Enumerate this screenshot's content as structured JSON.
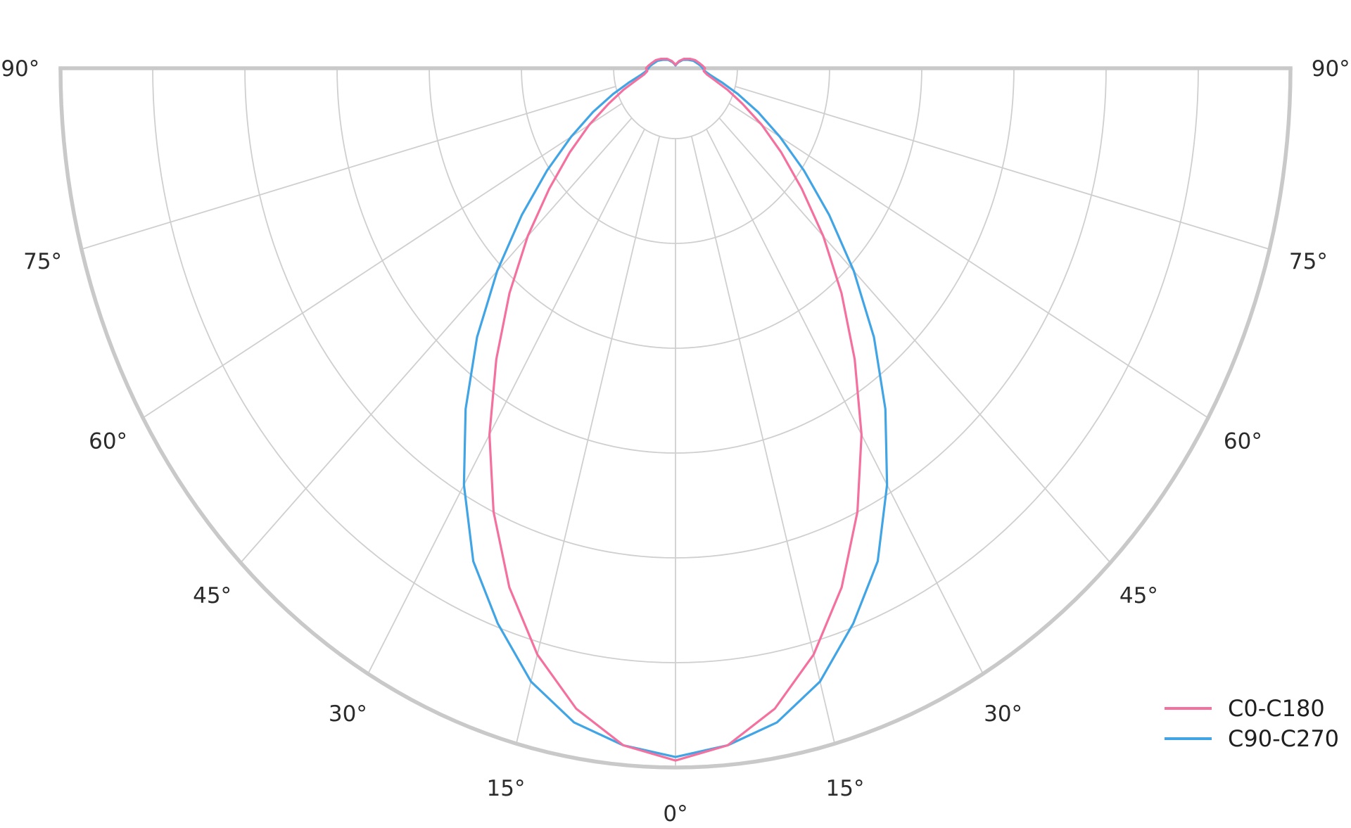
{
  "chart_data": {
    "type": "line",
    "projection": "half-polar photometric diagram, 0 deg at nadir (bottom), 90 deg at horizon both sides, vertical axis squashed ellipse grid",
    "title": "",
    "angle_ticks_deg": [
      0,
      15,
      30,
      45,
      60,
      75,
      90
    ],
    "angle_tick_labels": [
      "0°",
      "15°",
      "30°",
      "45°",
      "60°",
      "75°",
      "90°"
    ],
    "ring_fractions": [
      0.1006,
      0.2505,
      0.4004,
      0.5503,
      0.7002,
      0.8501
    ],
    "outer_ring_fraction": 1.0,
    "radial_grid_step_deg": 15,
    "grid_on": true,
    "angles_deg": [
      0,
      5,
      10,
      15,
      20,
      25,
      30,
      35,
      40,
      45,
      50,
      55,
      60,
      65,
      70,
      75,
      80,
      85,
      90,
      95,
      100,
      110,
      120,
      135,
      150,
      165,
      180
    ],
    "series": [
      {
        "name": "C0-C180",
        "color": "#f4719f",
        "r_rel": [
          0.99,
          0.972,
          0.93,
          0.868,
          0.79,
          0.7,
          0.605,
          0.508,
          0.42,
          0.34,
          0.268,
          0.21,
          0.162,
          0.12,
          0.09,
          0.066,
          0.052,
          0.046,
          0.048,
          0.044,
          0.04,
          0.034,
          0.027,
          0.019,
          0.012,
          0.007,
          0.005
        ]
      },
      {
        "name": "C90-C270",
        "color": "#41a5e5",
        "r_rel": [
          0.985,
          0.972,
          0.95,
          0.908,
          0.845,
          0.778,
          0.688,
          0.595,
          0.502,
          0.41,
          0.326,
          0.255,
          0.196,
          0.148,
          0.108,
          0.078,
          0.058,
          0.048,
          0.044,
          0.041,
          0.037,
          0.031,
          0.024,
          0.017,
          0.01,
          0.006,
          0.004
        ]
      }
    ],
    "legend": {
      "position": "lower right",
      "entries": [
        "C0-C180",
        "C90-C270"
      ]
    }
  },
  "styles": {
    "background": "#ffffff",
    "grid_color": "#cfcfcf",
    "frame_color": "#c9c9c9",
    "tick_label_color": "#2b2b2b",
    "legend_text_color": "#1f1f1f"
  }
}
